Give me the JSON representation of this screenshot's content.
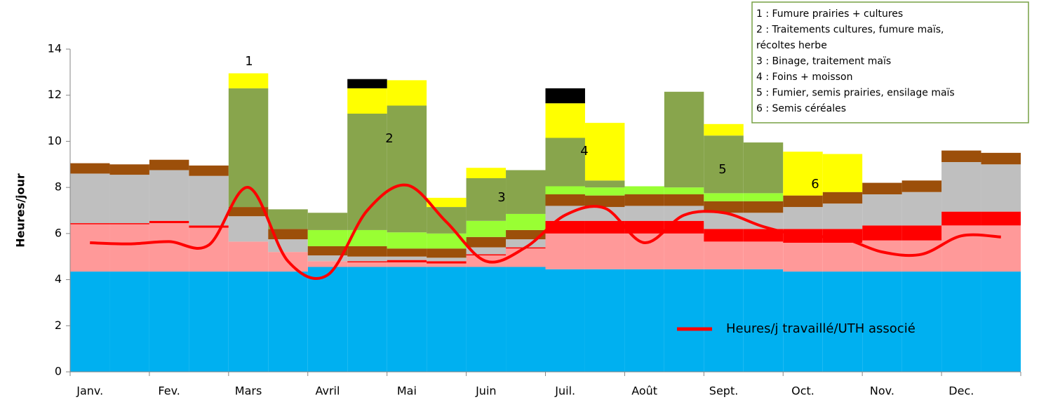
{
  "chart_data": {
    "type": "bar",
    "stacked": true,
    "y_label": "Heures/jour",
    "categories": [
      "Janv.",
      null,
      "Fev.",
      null,
      "Mars",
      null,
      "Avril",
      null,
      "Mai",
      null,
      "Juin",
      null,
      "Juil.",
      null,
      "Août",
      null,
      "Sept.",
      null,
      "Oct.",
      null,
      "Nov.",
      null,
      "Dec.",
      null
    ],
    "ylim": [
      0,
      14
    ],
    "yticks": [
      0,
      2,
      4,
      6,
      8,
      10,
      12,
      14
    ],
    "series": [
      {
        "color": "#00b0f0",
        "values": [
          4.35,
          4.35,
          4.35,
          4.35,
          4.35,
          4.35,
          4.55,
          4.55,
          4.55,
          4.55,
          4.55,
          4.55,
          4.45,
          4.45,
          4.45,
          4.45,
          4.45,
          4.45,
          4.35,
          4.35,
          4.35,
          4.35,
          4.35,
          4.35
        ]
      },
      {
        "color": "#ff9999",
        "values": [
          2.05,
          2.05,
          2.1,
          1.9,
          1.3,
          0.85,
          0.25,
          0.2,
          0.2,
          0.15,
          0.5,
          0.8,
          1.55,
          1.55,
          1.55,
          1.55,
          1.2,
          1.2,
          1.25,
          1.25,
          1.35,
          1.35,
          2.0,
          2.0
        ]
      },
      {
        "color": "#ff0000",
        "values": [
          0.05,
          0.05,
          0.1,
          0.1,
          0,
          0,
          0,
          0.05,
          0.1,
          0.1,
          0.05,
          0.05,
          0.55,
          0.55,
          0.55,
          0.55,
          0.55,
          0.55,
          0.6,
          0.6,
          0.65,
          0.65,
          0.6,
          0.6
        ]
      },
      {
        "color": "#bfbfbf",
        "values": [
          2.15,
          2.1,
          2.2,
          2.15,
          1.1,
          0.55,
          0.25,
          0.2,
          0.15,
          0.15,
          0.3,
          0.35,
          0.65,
          0.6,
          0.65,
          0.65,
          0.7,
          0.7,
          0.95,
          1.1,
          1.35,
          1.45,
          2.15,
          2.05
        ]
      },
      {
        "color": "#9c4f0a",
        "values": [
          0.45,
          0.45,
          0.45,
          0.45,
          0.4,
          0.45,
          0.4,
          0.45,
          0.35,
          0.4,
          0.45,
          0.4,
          0.5,
          0.5,
          0.5,
          0.5,
          0.5,
          0.5,
          0.5,
          0.5,
          0.5,
          0.5,
          0.5,
          0.5
        ]
      },
      {
        "color": "#99ff33",
        "values": [
          0,
          0,
          0,
          0,
          0,
          0,
          0.7,
          0.7,
          0.7,
          0.65,
          0.7,
          0.7,
          0.35,
          0.35,
          0.35,
          0.3,
          0.35,
          0.35,
          0,
          0,
          0,
          0,
          0,
          0
        ]
      },
      {
        "color": "#88a54c",
        "values": [
          0,
          0,
          0,
          0,
          5.15,
          0.85,
          0.75,
          5.05,
          5.5,
          1.15,
          1.85,
          1.9,
          2.1,
          0.3,
          0,
          4.15,
          2.5,
          2.2,
          0,
          0,
          0,
          0,
          0,
          0
        ]
      },
      {
        "color": "#ffff00",
        "values": [
          0,
          0,
          0,
          0,
          0.65,
          0,
          0,
          1.1,
          1.1,
          0.4,
          0.45,
          0,
          1.5,
          2.5,
          0,
          0,
          0.5,
          0,
          1.9,
          1.65,
          0,
          0,
          0,
          0
        ]
      },
      {
        "color": "#000000",
        "values": [
          0,
          0,
          0,
          0,
          0,
          0,
          0,
          0.4,
          0,
          0,
          0,
          0,
          0.65,
          0,
          0,
          0,
          0,
          0,
          0,
          0,
          0,
          0,
          0,
          0
        ]
      },
      {
        "type": "line",
        "name": "Heures/j travaillé/UTH associé",
        "color": "#ff0000",
        "values": [
          5.6,
          5.55,
          5.65,
          5.5,
          8.0,
          4.8,
          4.2,
          7.0,
          8.1,
          6.5,
          4.8,
          5.4,
          6.8,
          7.1,
          5.6,
          6.8,
          6.9,
          6.3,
          5.9,
          5.8,
          5.2,
          5.1,
          5.9,
          5.85
        ]
      }
    ],
    "annotations": [
      "1",
      "2",
      "3",
      "4",
      "5",
      "6"
    ],
    "notes": [
      "1 : Fumure prairies + cultures",
      "2 : Traitements cultures, fumure maïs,",
      "récoltes herbe",
      "3 : Binage, traitement maïs",
      "4 : Foins + moisson",
      "5 : Fumier, semis prairies, ensilage maïs",
      "6 : Semis céréales"
    ]
  }
}
